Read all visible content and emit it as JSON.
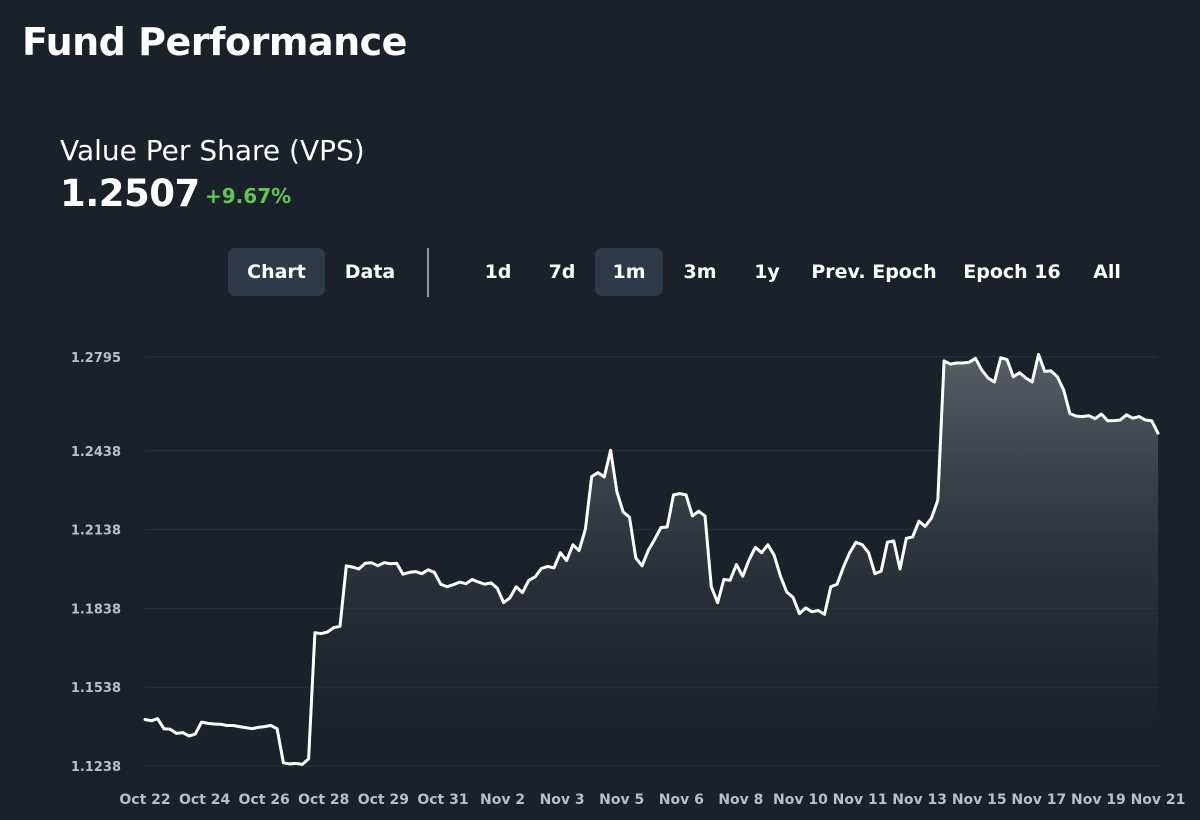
{
  "header": {
    "title": "Fund Performance"
  },
  "metric": {
    "label": "Value Per Share (VPS)",
    "value": "1.2507",
    "change": "+9.67%",
    "change_color": "#5fc752"
  },
  "view_tabs": [
    {
      "label": "Chart",
      "active": true
    },
    {
      "label": "Data",
      "active": false
    }
  ],
  "range_tabs": [
    {
      "label": "1d",
      "active": false
    },
    {
      "label": "7d",
      "active": false
    },
    {
      "label": "1m",
      "active": true
    },
    {
      "label": "3m",
      "active": false
    },
    {
      "label": "1y",
      "active": false
    },
    {
      "label": "Prev. Epoch",
      "active": false
    },
    {
      "label": "Epoch 16",
      "active": false
    },
    {
      "label": "All",
      "active": false
    }
  ],
  "colors": {
    "background": "#1a212b",
    "active_tab": "#2f3a48",
    "line": "#ffffff",
    "grid": "#2b3340",
    "tick_text": "#b9bec7",
    "positive": "#5fc752"
  },
  "chart_data": {
    "type": "area",
    "title": "",
    "xlabel": "",
    "ylabel": "",
    "ylim": [
      1.1238,
      1.2795
    ],
    "yticks": [
      "1.2795",
      "1.2438",
      "1.2138",
      "1.1838",
      "1.1538",
      "1.1238"
    ],
    "xticks": [
      "Oct 22",
      "Oct 24",
      "Oct 26",
      "Oct 28",
      "Oct 29",
      "Oct 31",
      "Nov 2",
      "Nov 3",
      "Nov 5",
      "Nov 6",
      "Nov 8",
      "Nov 10",
      "Nov 11",
      "Nov 13",
      "Nov 15",
      "Nov 17",
      "Nov 19",
      "Nov 21"
    ],
    "grid": true,
    "series": [
      {
        "values": [
          1.1415,
          1.141,
          1.1418,
          1.138,
          1.1378,
          1.1362,
          1.1365,
          1.1352,
          1.136,
          1.1405,
          1.14,
          1.1398,
          1.1397,
          1.1392,
          1.1392,
          1.1388,
          1.1384,
          1.138,
          1.1385,
          1.1388,
          1.1392,
          1.138,
          1.125,
          1.1246,
          1.1248,
          1.1244,
          1.1265,
          1.1745,
          1.1742,
          1.1748,
          1.1765,
          1.177,
          1.2,
          1.1995,
          1.1988,
          1.201,
          1.2012,
          1.2,
          1.2012,
          1.2008,
          1.201,
          1.1968,
          1.1975,
          1.1978,
          1.197,
          1.1985,
          1.1975,
          1.193,
          1.192,
          1.1928,
          1.1938,
          1.1932,
          1.1948,
          1.1938,
          1.193,
          1.1935,
          1.1915,
          1.186,
          1.1878,
          1.192,
          1.1898,
          1.1945,
          1.1958,
          1.199,
          1.1998,
          1.1992,
          1.205,
          1.202,
          1.208,
          1.2058,
          1.214,
          1.234,
          1.2355,
          1.2338,
          1.244,
          1.2282,
          1.2205,
          1.2185,
          1.203,
          1.2,
          1.206,
          1.21,
          1.2146,
          1.2148,
          1.227,
          1.2275,
          1.227,
          1.219,
          1.2208,
          1.219,
          1.192,
          1.186,
          1.1948,
          1.1945,
          1.2005,
          1.196,
          1.2022,
          1.207,
          1.205,
          1.208,
          1.204,
          1.196,
          1.19,
          1.188,
          1.1818,
          1.184,
          1.1825,
          1.183,
          1.1815,
          1.192,
          1.193,
          1.1995,
          1.205,
          1.209,
          1.208,
          1.205,
          1.197,
          1.198,
          1.209,
          1.2095,
          1.1988,
          1.2105,
          1.211,
          1.217,
          1.215,
          1.2182,
          1.225,
          1.278,
          1.2768,
          1.2772,
          1.2772,
          1.2775,
          1.279,
          1.2745,
          1.2715,
          1.27,
          1.2792,
          1.2785,
          1.272,
          1.2735,
          1.2715,
          1.27,
          1.2805,
          1.274,
          1.2742,
          1.272,
          1.267,
          1.258,
          1.257,
          1.2568,
          1.2572,
          1.256,
          1.2578,
          1.2552,
          1.2553,
          1.2555,
          1.2575,
          1.2562,
          1.2568,
          1.2555,
          1.2552,
          1.2505
        ]
      }
    ]
  }
}
